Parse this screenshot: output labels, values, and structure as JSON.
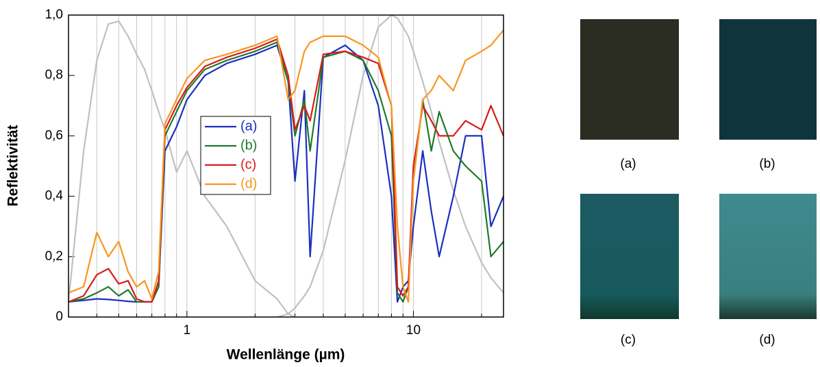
{
  "chart_data": {
    "type": "line",
    "xlabel": "Wellenlänge (µm)",
    "ylabel": "Reflektivität",
    "xscale": "log",
    "xlim": [
      0.3,
      25
    ],
    "ylim": [
      0,
      1
    ],
    "xticks": [
      1,
      10
    ],
    "x_minor_ticks": [
      0.4,
      0.5,
      0.6,
      0.7,
      0.8,
      0.9,
      2,
      3,
      4,
      5,
      6,
      7,
      8,
      9,
      20
    ],
    "yticks": [
      0,
      {
        "value": 0.2,
        "label": "0,2"
      },
      {
        "value": 0.4,
        "label": "0,4"
      },
      {
        "value": 0.6,
        "label": "0,6"
      },
      {
        "value": 0.8,
        "label": "0,8"
      },
      {
        "value": 1,
        "label": "1,0"
      }
    ],
    "grid": true,
    "x": [
      0.3,
      0.35,
      0.4,
      0.45,
      0.5,
      0.55,
      0.6,
      0.65,
      0.7,
      0.75,
      0.8,
      0.9,
      1,
      1.2,
      1.5,
      2,
      2.5,
      2.8,
      3,
      3.3,
      3.5,
      4,
      5,
      6,
      7,
      8,
      8.5,
      9,
      9.5,
      10,
      11,
      12,
      13,
      15,
      17,
      20,
      22,
      25
    ],
    "series": [
      {
        "color": "#c0c0c0",
        "values": [
          0.05,
          0.55,
          0.85,
          0.97,
          0.98,
          0.93,
          0.87,
          0.82,
          0.75,
          0.68,
          0.62,
          0.48,
          0.55,
          0.4,
          0.3,
          0.12,
          0.06,
          0.01,
          0,
          null,
          null,
          null,
          null,
          null,
          null,
          null,
          null,
          null,
          null,
          null,
          null,
          null,
          null,
          null,
          null,
          null,
          null,
          null
        ]
      },
      {
        "color": "#c0c0c0",
        "values": [
          null,
          null,
          null,
          null,
          null,
          null,
          null,
          null,
          null,
          null,
          null,
          null,
          null,
          null,
          null,
          null,
          0,
          0.01,
          0.03,
          0.07,
          0.1,
          0.22,
          0.52,
          0.8,
          0.96,
          1,
          0.99,
          0.96,
          0.93,
          0.88,
          0.78,
          0.68,
          0.58,
          0.42,
          0.3,
          0.18,
          0.13,
          0.08
        ]
      },
      {
        "name": "(a)",
        "color": "#1a2fc0",
        "values": [
          0.05,
          0.055,
          0.06,
          0.058,
          0.055,
          0.052,
          0.05,
          0.05,
          0.05,
          0.1,
          0.55,
          0.63,
          0.72,
          0.8,
          0.84,
          0.87,
          0.9,
          0.78,
          0.45,
          0.75,
          0.2,
          0.86,
          0.9,
          0.85,
          0.7,
          0.4,
          0.05,
          0.1,
          0.12,
          0.3,
          0.55,
          0.35,
          0.2,
          0.4,
          0.6,
          0.6,
          0.3,
          0.4
        ]
      },
      {
        "name": "(b)",
        "color": "#1e7a2a",
        "values": [
          0.05,
          0.06,
          0.08,
          0.1,
          0.07,
          0.09,
          0.05,
          0.05,
          0.05,
          0.1,
          0.6,
          0.68,
          0.75,
          0.82,
          0.85,
          0.88,
          0.91,
          0.78,
          0.6,
          0.72,
          0.55,
          0.86,
          0.88,
          0.85,
          0.75,
          0.6,
          0.08,
          0.05,
          0.1,
          0.45,
          0.72,
          0.55,
          0.68,
          0.55,
          0.5,
          0.45,
          0.2,
          0.25
        ]
      },
      {
        "name": "(c)",
        "color": "#d91a1a",
        "values": [
          0.05,
          0.07,
          0.14,
          0.16,
          0.11,
          0.12,
          0.06,
          0.05,
          0.05,
          0.12,
          0.62,
          0.7,
          0.76,
          0.83,
          0.86,
          0.89,
          0.92,
          0.8,
          0.62,
          0.7,
          0.65,
          0.87,
          0.88,
          0.86,
          0.84,
          0.7,
          0.1,
          0.07,
          0.1,
          0.5,
          0.7,
          0.65,
          0.6,
          0.6,
          0.65,
          0.62,
          0.7,
          0.6
        ]
      },
      {
        "name": "(d)",
        "color": "#f7961e",
        "values": [
          0.08,
          0.1,
          0.28,
          0.2,
          0.25,
          0.15,
          0.1,
          0.12,
          0.06,
          0.15,
          0.64,
          0.72,
          0.79,
          0.85,
          0.87,
          0.9,
          0.93,
          0.72,
          0.75,
          0.88,
          0.91,
          0.93,
          0.93,
          0.9,
          0.86,
          0.7,
          0.3,
          0.1,
          0.05,
          0.45,
          0.72,
          0.75,
          0.8,
          0.75,
          0.85,
          0.88,
          0.9,
          0.95
        ]
      }
    ]
  },
  "photos": {
    "labels": [
      "(a)",
      "(b)",
      "(c)",
      "(d)"
    ]
  }
}
